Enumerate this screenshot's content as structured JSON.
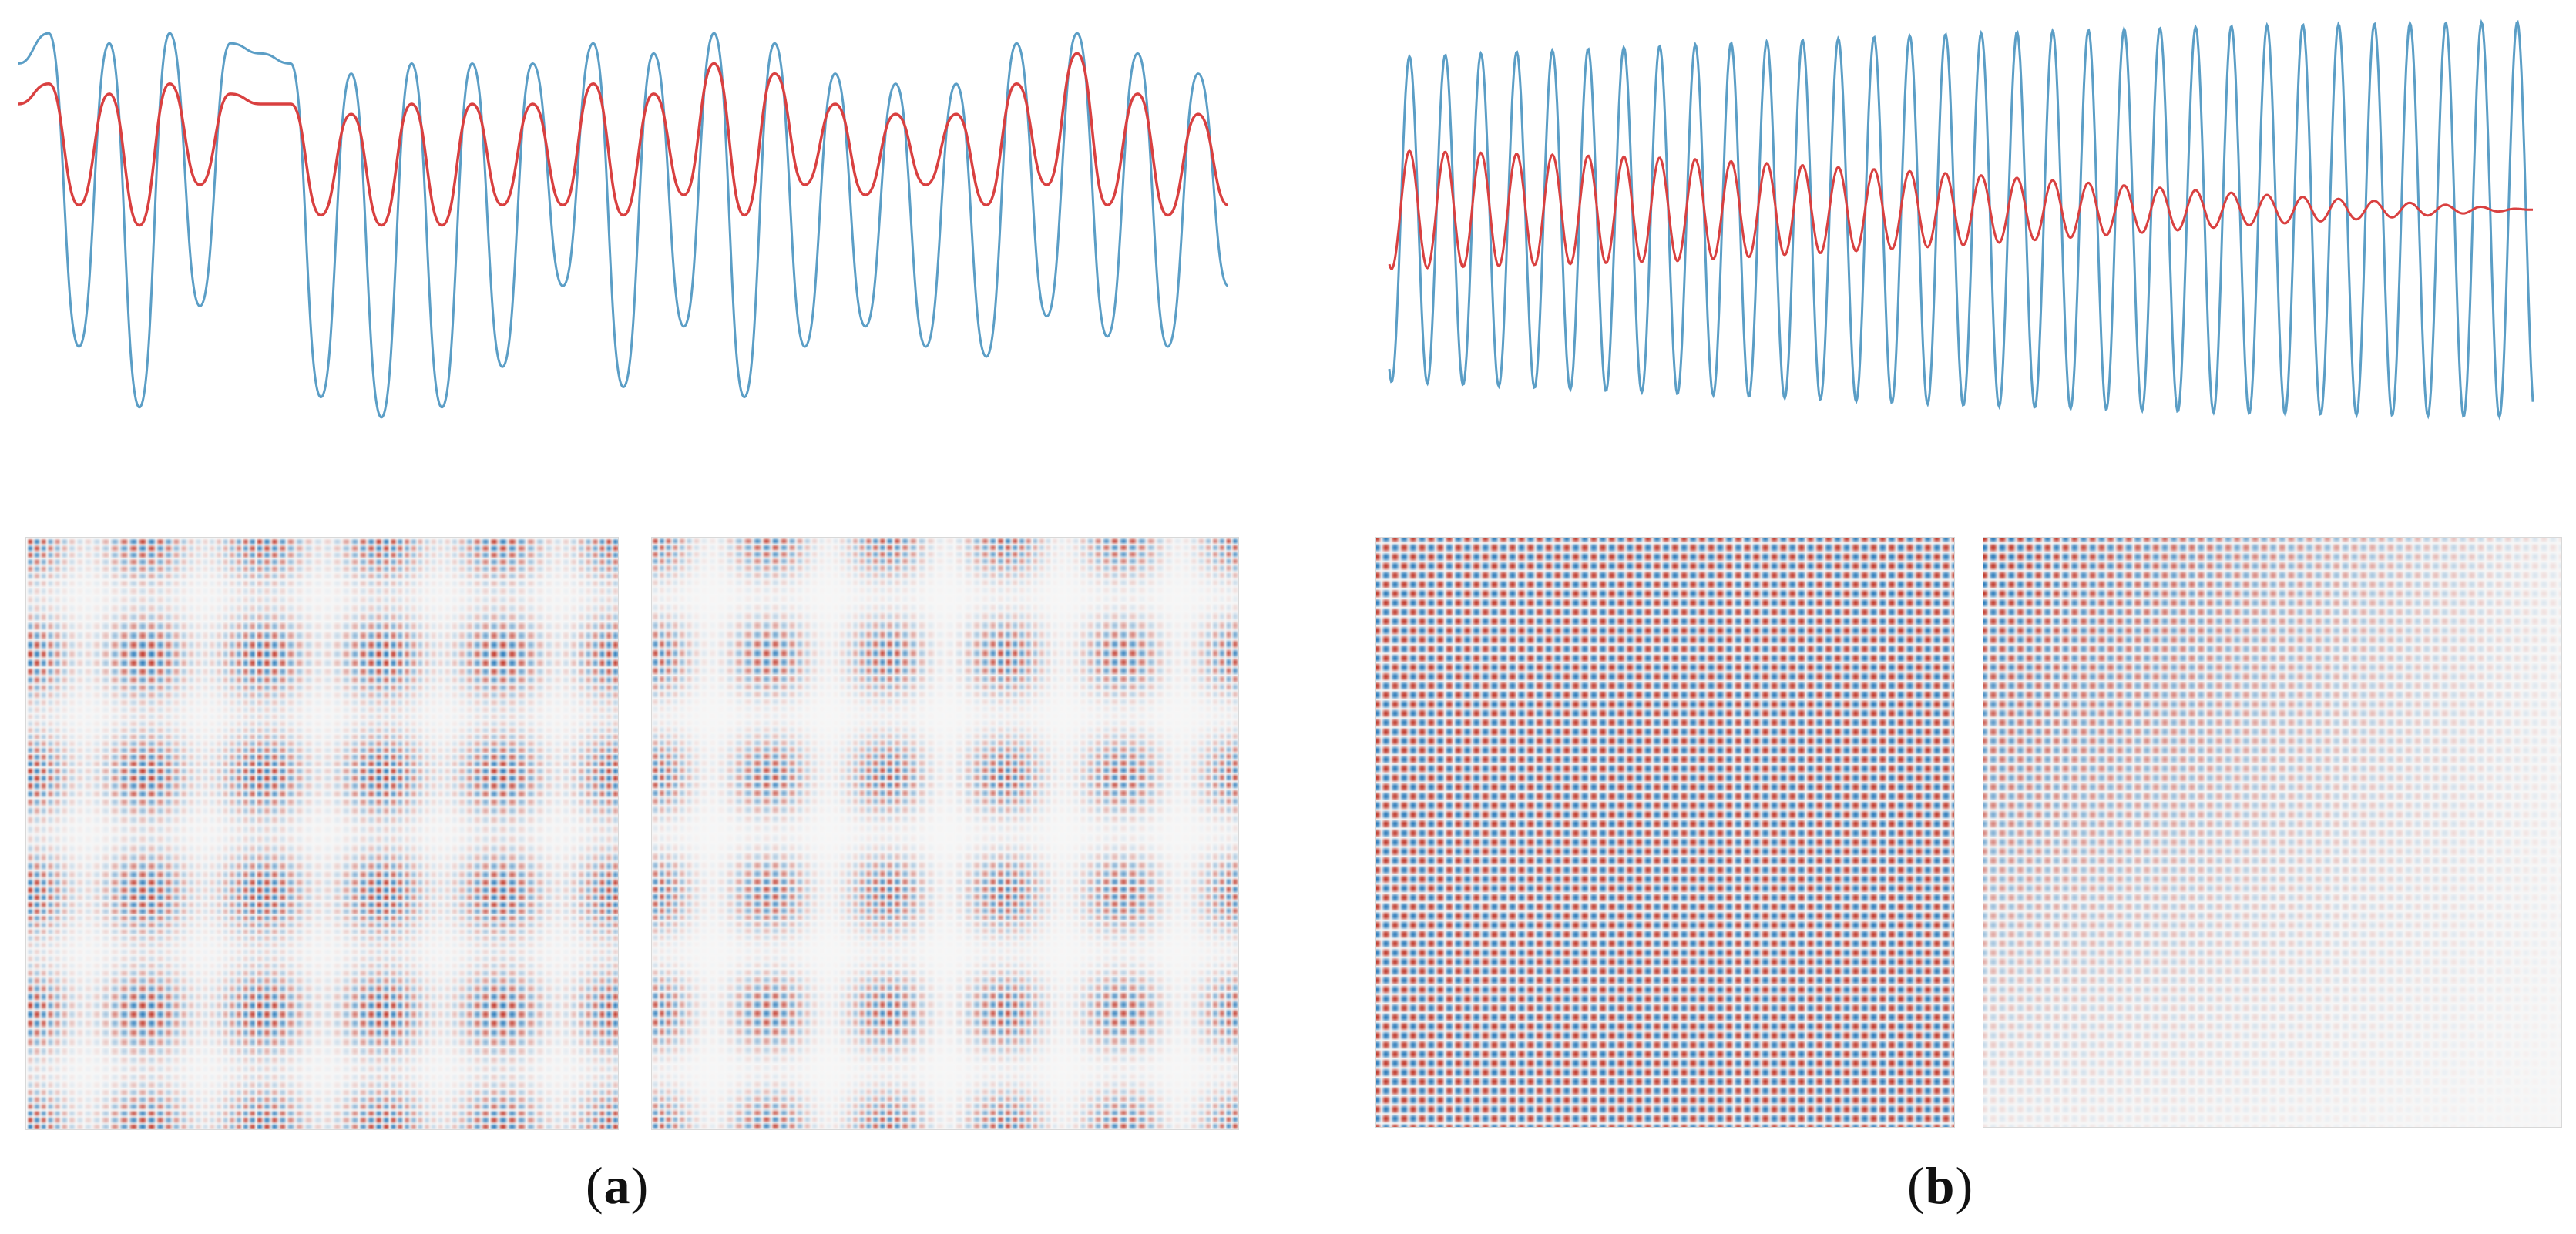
{
  "panels": [
    {
      "id": "a",
      "caption": {
        "open": "(",
        "letter": "a",
        "close": ")"
      }
    },
    {
      "id": "b",
      "caption": {
        "open": "(",
        "letter": "b",
        "close": ")"
      }
    }
  ],
  "colors": {
    "original_series": "#5b9ec6",
    "filtered_series": "#d94040",
    "heatmap_positive": "#c0392b",
    "heatmap_negative": "#2b7bba",
    "heatmap_neutral": "#f7f7f7"
  },
  "chart_data": [
    {
      "panel": "a",
      "type": "line",
      "title": "",
      "xlabel": "",
      "ylabel": "",
      "grid": false,
      "series": [
        {
          "color": "#5b9ec6",
          "x": [
            0,
            10,
            20,
            30,
            40,
            50,
            60,
            70,
            80,
            90,
            100,
            110,
            120,
            130,
            140,
            150,
            160,
            170,
            180,
            190,
            200,
            210,
            220,
            230,
            240,
            250,
            260,
            270,
            280,
            290,
            300,
            310,
            320,
            330,
            340,
            350,
            360,
            370,
            380,
            390,
            400
          ],
          "y": [
            0.8,
            0.95,
            -0.6,
            0.9,
            -0.9,
            0.95,
            -0.4,
            0.9,
            0.85,
            0.8,
            -0.85,
            0.75,
            -0.95,
            0.8,
            -0.9,
            0.8,
            -0.7,
            0.8,
            -0.3,
            0.9,
            -0.8,
            0.85,
            -0.5,
            0.95,
            -0.85,
            0.9,
            -0.6,
            0.75,
            -0.5,
            0.7,
            -0.6,
            0.7,
            -0.65,
            0.9,
            -0.45,
            0.95,
            -0.55,
            0.85,
            -0.6,
            0.75,
            -0.3
          ]
        },
        {
          "color": "#d94040",
          "x": [
            0,
            10,
            20,
            30,
            40,
            50,
            60,
            70,
            80,
            90,
            100,
            110,
            120,
            130,
            140,
            150,
            160,
            170,
            180,
            190,
            200,
            210,
            220,
            230,
            240,
            250,
            260,
            270,
            280,
            290,
            300,
            310,
            320,
            330,
            340,
            350,
            360,
            370,
            380,
            390,
            400
          ],
          "y": [
            0.6,
            0.7,
            0.1,
            0.65,
            0.0,
            0.7,
            0.2,
            0.65,
            0.6,
            0.6,
            0.05,
            0.55,
            0.0,
            0.6,
            0.0,
            0.6,
            0.1,
            0.6,
            0.1,
            0.7,
            0.05,
            0.65,
            0.15,
            0.8,
            0.05,
            0.75,
            0.2,
            0.6,
            0.15,
            0.55,
            0.2,
            0.55,
            0.1,
            0.7,
            0.2,
            0.85,
            0.1,
            0.65,
            0.05,
            0.55,
            0.1
          ]
        }
      ]
    },
    {
      "panel": "b",
      "type": "line",
      "title": "",
      "xlabel": "",
      "ylabel": "",
      "grid": false,
      "series": [
        {
          "color": "#5b9ec6",
          "cycles": 32,
          "x": [
            0,
            0.25,
            0.5,
            0.75,
            1.0
          ],
          "y_amplitude": [
            0.82,
            0.88,
            0.94,
            0.98,
            1.0
          ]
        },
        {
          "color": "#d94040",
          "cycles": 32,
          "x": [
            0,
            0.25,
            0.5,
            0.75,
            1.0
          ],
          "y_amplitude": [
            0.3,
            0.26,
            0.18,
            0.08,
            0.0
          ],
          "offset": 0.05
        }
      ]
    },
    {
      "panel": "a",
      "type": "heatmap",
      "count": 2,
      "title": ""
    },
    {
      "panel": "b",
      "type": "heatmap",
      "count": 2,
      "title": ""
    }
  ]
}
